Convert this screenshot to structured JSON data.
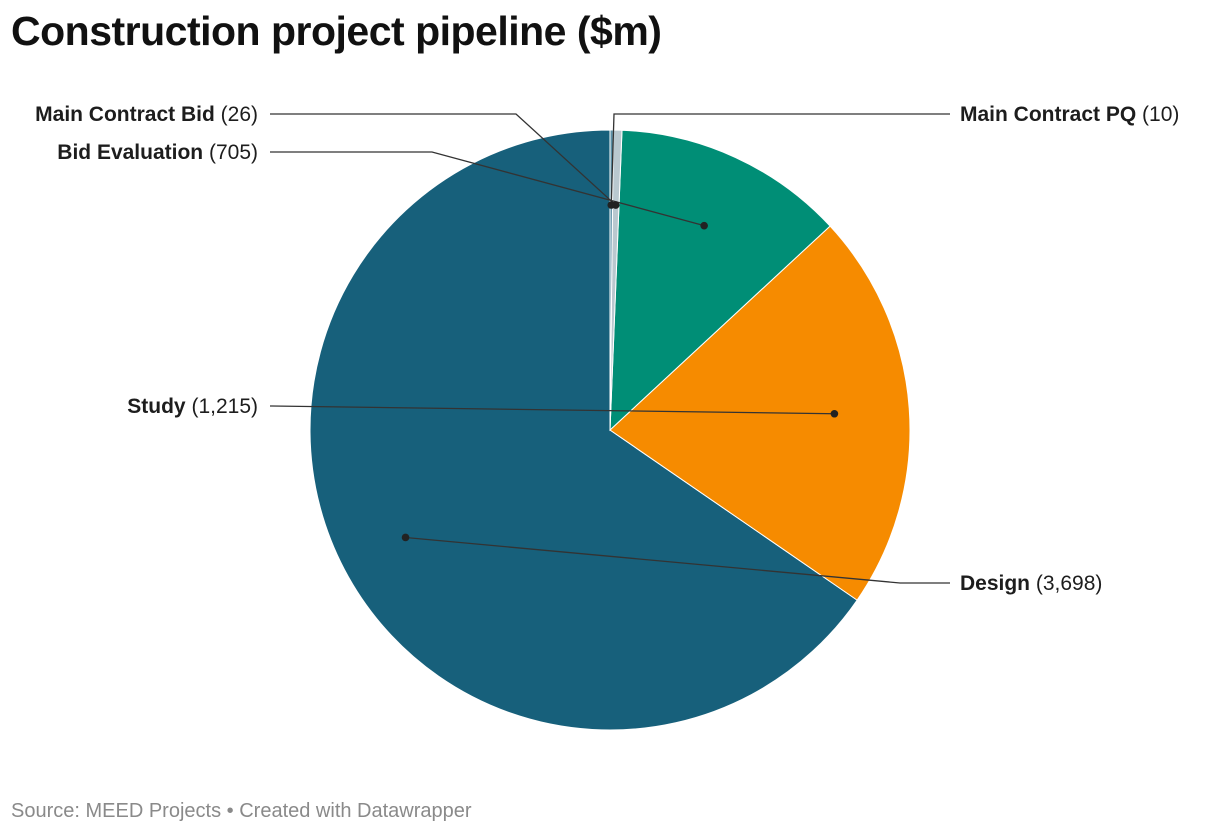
{
  "chart_data": {
    "type": "pie",
    "title": "Construction project pipeline ($m)",
    "colors": {
      "Design": "#17607b",
      "Study": "#f68b00",
      "Bid Evaluation": "#008e76",
      "Main Contract Bid": "#b9c8cf",
      "Main Contract PQ": "#5a8fa6"
    },
    "slices": [
      {
        "label": "Design",
        "value": 3698,
        "value_text": "(3,698)"
      },
      {
        "label": "Study",
        "value": 1215,
        "value_text": "(1,215)"
      },
      {
        "label": "Bid Evaluation",
        "value": 705,
        "value_text": "(705)"
      },
      {
        "label": "Main Contract Bid",
        "value": 26,
        "value_text": "(26)"
      },
      {
        "label": "Main Contract PQ",
        "value": 10,
        "value_text": "(10)"
      }
    ]
  },
  "footer": {
    "source": "Source: MEED Projects",
    "separator": "•",
    "credit": "Created with Datawrapper"
  }
}
